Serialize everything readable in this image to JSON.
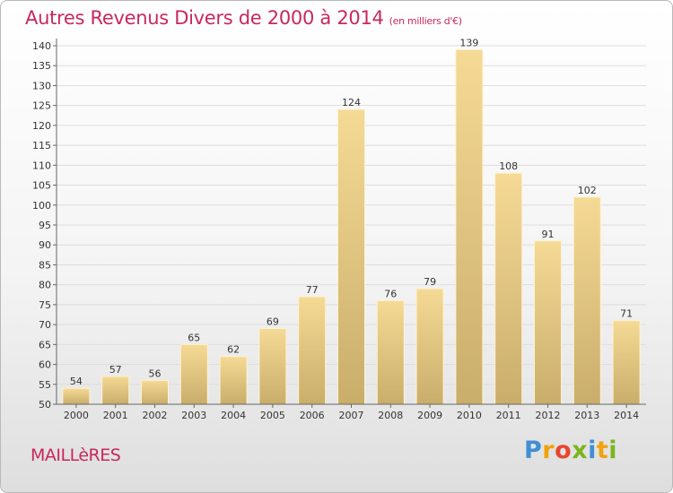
{
  "header": {
    "title": "Autres Revenus Divers de 2000 à 2014",
    "unit": "(en milliers d'€)"
  },
  "footer": {
    "commune": "MAILLèRES"
  },
  "brand": {
    "letters": [
      "P",
      "r",
      "o",
      "x",
      "i",
      "t",
      "i"
    ],
    "colors": [
      "#3f8fd2",
      "#f0a20f",
      "#e8462d",
      "#7ab51d",
      "#3f8fd2",
      "#f0a20f",
      "#7ab51d"
    ]
  },
  "chart_data": {
    "type": "bar",
    "title": "Autres Revenus Divers de 2000 à 2014",
    "categories": [
      "2000",
      "2001",
      "2002",
      "2003",
      "2004",
      "2005",
      "2006",
      "2007",
      "2008",
      "2009",
      "2010",
      "2011",
      "2012",
      "2013",
      "2014"
    ],
    "values": [
      54,
      57,
      56,
      65,
      62,
      69,
      77,
      124,
      76,
      79,
      139,
      108,
      91,
      102,
      71
    ],
    "ylim": [
      50,
      140
    ],
    "yticks": [
      50,
      55,
      60,
      65,
      70,
      75,
      80,
      85,
      90,
      95,
      100,
      105,
      110,
      115,
      120,
      125,
      130,
      135,
      140
    ],
    "grid": true,
    "bar_color": "#f5da96",
    "bar_color_dark": "#c9ad6a"
  }
}
